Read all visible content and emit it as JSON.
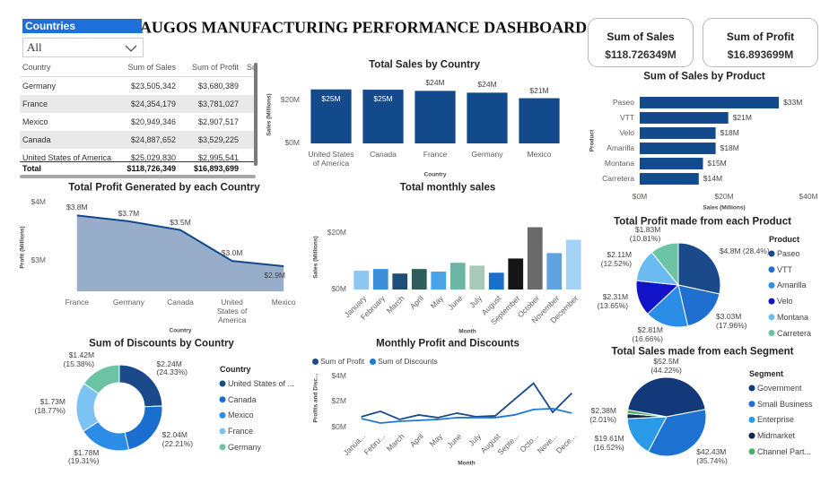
{
  "header": {
    "title": "AUGOS MANUFACTURING PERFORMANCE DASHBOARD"
  },
  "slicer": {
    "title": "Countries",
    "value": "All"
  },
  "table": {
    "columns": [
      "Country",
      "Sum of Sales",
      "Sum of Profit",
      "Su"
    ],
    "rows": [
      [
        "Germany",
        "$23,505,342",
        "$3,680,389"
      ],
      [
        "France",
        "$24,354,179",
        "$3,781,027"
      ],
      [
        "Mexico",
        "$20,949,346",
        "$2,907,517"
      ],
      [
        "Canada",
        "$24,887,652",
        "$3,529,225"
      ],
      [
        "United States of America",
        "$25,029,830",
        "$2,995,541"
      ]
    ],
    "total": [
      "Total",
      "$118,726,349",
      "$16,893,699"
    ]
  },
  "cards": [
    {
      "label": "Sum of Sales",
      "value": "$118.726349M"
    },
    {
      "label": "Sum of Profit",
      "value": "$16.893699M"
    }
  ],
  "chart_data": [
    {
      "type": "bar",
      "title": "Total Sales by Country",
      "categories": [
        "United States of America",
        "Canada",
        "France",
        "Germany",
        "Mexico"
      ],
      "values": [
        25.03,
        24.89,
        24.35,
        23.51,
        20.95
      ],
      "value_labels": [
        "$25M",
        "$25M",
        "$24M",
        "$24M",
        "$21M"
      ],
      "color": "#124a8c",
      "ylim": [
        0,
        27
      ],
      "yticks": [
        {
          "value": 0,
          "label": "$0M"
        },
        {
          "value": 20,
          "label": "$20M"
        }
      ],
      "xlabel": "Country",
      "ylabel": "Sales (Millions)"
    },
    {
      "type": "area",
      "title": "Total Profit Generated by each Country",
      "categories": [
        "France",
        "Germany",
        "Canada",
        "United States of America",
        "Mexico"
      ],
      "values": [
        3.78,
        3.68,
        3.53,
        3.0,
        2.91
      ],
      "value_labels": [
        "$3.8M",
        "$3.7M",
        "$3.5M",
        "$3.0M",
        "$2.9M"
      ],
      "color": "#124a8c",
      "fill": "#98adc9",
      "ylim": [
        2.48,
        4
      ],
      "yticks": [
        {
          "value": 3,
          "label": "$3M"
        },
        {
          "value": 4,
          "label": "$4M"
        }
      ],
      "xlabel": "Country",
      "ylabel": "Profit (Millions)"
    },
    {
      "type": "bar",
      "title": "Total monthly sales",
      "categories": [
        "January",
        "February",
        "March",
        "April",
        "May",
        "June",
        "July",
        "August",
        "September",
        "October",
        "November",
        "December"
      ],
      "values": [
        6.6,
        7.2,
        5.6,
        7.2,
        6.3,
        9.4,
        8.4,
        5.9,
        10.9,
        21.9,
        12.8,
        17.5
      ],
      "colors": [
        "#8cc6f2",
        "#3a8fd8",
        "#1f4e79",
        "#2e5e5a",
        "#4aa3e8",
        "#6cb7a3",
        "#a9c9b9",
        "#1a6fc9",
        "#151515",
        "#6a6a6a",
        "#5ea3e0",
        "#a3d3f6"
      ],
      "ylim": [
        0,
        23
      ],
      "yticks": [
        {
          "value": 0,
          "label": "$0M"
        },
        {
          "value": 20,
          "label": "$20M"
        }
      ],
      "xlabel": "Month",
      "ylabel": "Sales (Millions)"
    },
    {
      "type": "line",
      "title": "Monthly Profit and Discounts",
      "categories": [
        "Janua...",
        "Febru...",
        "March",
        "April",
        "May",
        "June",
        "July",
        "August",
        "Septe...",
        "Octo...",
        "Nove...",
        "Dece..."
      ],
      "series": [
        {
          "name": "Sum of Profit",
          "color": "#1a4a8c",
          "values": [
            0.84,
            1.26,
            0.63,
            0.98,
            0.77,
            1.12,
            0.84,
            0.91,
            2.18,
            3.44,
            1.19,
            2.67
          ]
        },
        {
          "name": "Sum of Discounts",
          "color": "#1c7ad6",
          "values": [
            0.7,
            0.35,
            0.49,
            0.56,
            0.63,
            0.77,
            0.77,
            0.77,
            0.98,
            1.4,
            1.47,
            1.12
          ]
        }
      ],
      "ylim": [
        0,
        4.6
      ],
      "yticks": [
        {
          "value": 0,
          "label": "$0M"
        },
        {
          "value": 2,
          "label": "$2M"
        },
        {
          "value": 4,
          "label": "$4M"
        }
      ],
      "xlabel": "Month",
      "ylabel": "Profits and Disc..."
    },
    {
      "type": "bar",
      "horizontal": true,
      "title": "Sum of Sales by Product",
      "categories": [
        "Paseo",
        "VTT",
        "Velo",
        "Amarilla",
        "Montana",
        "Carretera"
      ],
      "values": [
        33,
        21,
        18,
        18,
        15,
        14
      ],
      "value_labels": [
        "$33M",
        "$21M",
        "$18M",
        "$18M",
        "$15M",
        "$14M"
      ],
      "color": "#124a8c",
      "xlim": [
        0,
        40
      ],
      "xticks": [
        {
          "value": 0,
          "label": "$0M"
        },
        {
          "value": 20,
          "label": "$20M"
        },
        {
          "value": 40,
          "label": "$40M"
        }
      ],
      "xlabel": "Sales (Millions)",
      "ylabel": "Product"
    },
    {
      "type": "pie",
      "title": "Total Profit made from each Product",
      "legend_title": "Product",
      "categories": [
        "Paseo",
        "VTT",
        "Amarilla",
        "Velo",
        "Montana",
        "Carretera"
      ],
      "values": [
        4.8,
        3.03,
        2.81,
        2.31,
        2.11,
        1.83
      ],
      "value_labels": [
        "$4.8M (28.4%)",
        "$3.03M (17.96%)",
        "$2.81M (16.66%)",
        "$2.31M (13.65%)",
        "$2.11M (12.52%)",
        "$1.83M (10.81%)"
      ],
      "colors": [
        "#1b4a8a",
        "#1e6fd0",
        "#2b8de6",
        "#1212c8",
        "#6bbaf0",
        "#6cc4a4"
      ]
    },
    {
      "type": "pie",
      "donut": true,
      "title": "Sum of Discounts by Country",
      "legend_title": "Country",
      "categories": [
        "United States of ...",
        "Canada",
        "Mexico",
        "France",
        "Germany"
      ],
      "values": [
        2.24,
        2.04,
        1.78,
        1.73,
        1.42
      ],
      "value_labels": [
        "$2.24M (24.33%)",
        "$2.04M (22.21%)",
        "$1.78M (19.31%)",
        "$1.73M (18.77%)",
        "$1.42M (15.38%)"
      ],
      "colors": [
        "#1b4a8a",
        "#1a6ed0",
        "#2b8de6",
        "#7cc2f2",
        "#6cc4a4"
      ]
    },
    {
      "type": "pie",
      "title": "Total Sales made from each Segment",
      "legend_title": "Segment",
      "categories": [
        "Government",
        "Small Business",
        "Enterprise",
        "Midmarket",
        "Channel Part..."
      ],
      "values": [
        52.5,
        42.43,
        19.61,
        2.38,
        1.81
      ],
      "value_labels": [
        "$52.5M (44.22%)",
        "$42.43M (35.74%)",
        "$19.61M (16.52%)",
        "$2.38M (2.01%)",
        null
      ],
      "colors": [
        "#13397a",
        "#1e73d2",
        "#2a9ae8",
        "#0e2a4a",
        "#4caf68"
      ]
    }
  ]
}
